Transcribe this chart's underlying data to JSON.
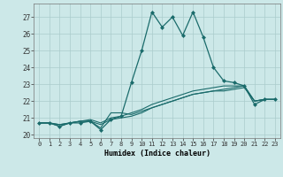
{
  "title": "",
  "xlabel": "Humidex (Indice chaleur)",
  "ylabel": "",
  "background_color": "#cce8e8",
  "grid_color": "#aacccc",
  "line_color": "#1a6b6b",
  "xlim": [
    -0.5,
    23.5
  ],
  "ylim": [
    19.8,
    27.8
  ],
  "yticks": [
    20,
    21,
    22,
    23,
    24,
    25,
    26,
    27
  ],
  "xticks": [
    0,
    1,
    2,
    3,
    4,
    5,
    6,
    7,
    8,
    9,
    10,
    11,
    12,
    13,
    14,
    15,
    16,
    17,
    18,
    19,
    20,
    21,
    22,
    23
  ],
  "series": [
    [
      20.7,
      20.7,
      20.5,
      20.7,
      20.7,
      20.8,
      20.3,
      20.9,
      21.1,
      23.1,
      25.0,
      27.3,
      26.4,
      27.0,
      25.9,
      27.3,
      25.8,
      24.0,
      23.2,
      23.1,
      22.9,
      21.8,
      22.1,
      22.1
    ],
    [
      20.7,
      20.7,
      20.5,
      20.7,
      20.8,
      20.8,
      20.4,
      21.3,
      21.3,
      21.2,
      21.4,
      21.6,
      21.8,
      22.0,
      22.2,
      22.4,
      22.5,
      22.6,
      22.7,
      22.8,
      22.9,
      22.0,
      22.1,
      22.1
    ],
    [
      20.7,
      20.7,
      20.6,
      20.7,
      20.8,
      20.8,
      20.6,
      20.9,
      21.0,
      21.1,
      21.3,
      21.6,
      21.8,
      22.0,
      22.2,
      22.4,
      22.5,
      22.6,
      22.6,
      22.7,
      22.8,
      22.0,
      22.1,
      22.1
    ],
    [
      20.7,
      20.7,
      20.6,
      20.7,
      20.8,
      20.9,
      20.7,
      21.0,
      21.1,
      21.3,
      21.5,
      21.8,
      22.0,
      22.2,
      22.4,
      22.6,
      22.7,
      22.8,
      22.9,
      22.9,
      22.9,
      22.0,
      22.1,
      22.1
    ]
  ],
  "marker": "D",
  "marker_size": 2.0
}
